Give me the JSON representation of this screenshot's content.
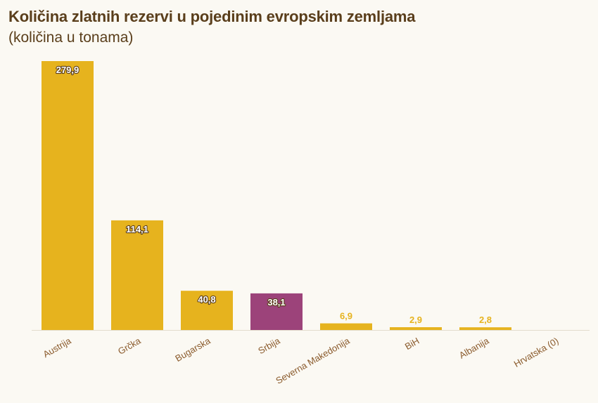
{
  "header": {
    "title": "Količina zlatnih rezervi u pojedinim evropskim zemljama",
    "subtitle": "(količina u tonama)"
  },
  "colors": {
    "bar": "#e6b31e",
    "highlight": "#9c437a",
    "text": "#5a3e1b",
    "tick_text": "#8a5a2b",
    "baseline": "#e2dccd",
    "background": "#fbf9f3"
  },
  "chart_data": {
    "type": "bar",
    "categories": [
      "Austrija",
      "Grčka",
      "Bugarska",
      "Srbija",
      "Severna Makedonija",
      "BiH",
      "Albanija",
      "Hrvatska (0)"
    ],
    "values": [
      279.9,
      114.1,
      40.8,
      38.1,
      6.9,
      2.9,
      2.8,
      0
    ],
    "data_labels": [
      "279,9",
      "114,1",
      "40,8",
      "38,1",
      "6,9",
      "2,9",
      "2,8",
      ""
    ],
    "highlight_category": "Srbija",
    "title": "Količina zlatnih rezervi u pojedinim evropskim zemljama",
    "subtitle": "(količina u tonama)",
    "ylim": [
      0,
      279.9
    ],
    "grid": false,
    "legend": "none"
  }
}
